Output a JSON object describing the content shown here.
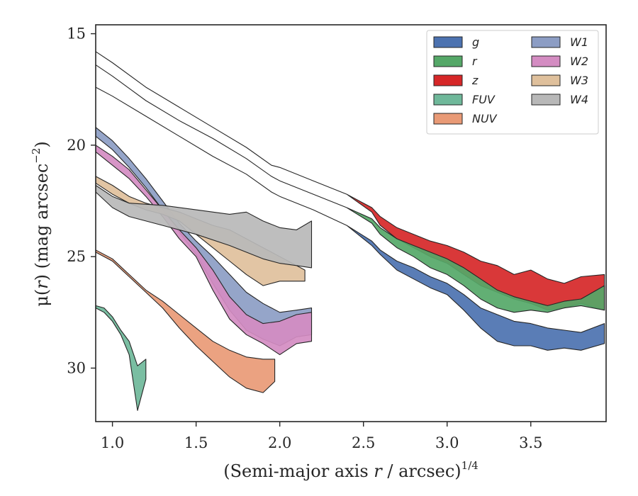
{
  "chart_data": {
    "type": "area",
    "title": "",
    "xlabel_prefix": "(Semi-major axis ",
    "xlabel_var": "r",
    "xlabel_suffix": " / arcsec)",
    "xlabel_sup": "1/4",
    "ylabel_prefix": "μ(",
    "ylabel_var": "r",
    "ylabel_mid": ") (mag arcsec",
    "ylabel_sup": "−2",
    "ylabel_suffix": ")",
    "xlim": [
      0.9,
      3.95
    ],
    "ylim": [
      32.4,
      14.6
    ],
    "y_inverted": true,
    "x_ticks": [
      {
        "v": 1.0,
        "label": "1.0"
      },
      {
        "v": 1.5,
        "label": "1.5"
      },
      {
        "v": 2.0,
        "label": "2.0"
      },
      {
        "v": 2.5,
        "label": "2.5"
      },
      {
        "v": 3.0,
        "label": "3.0"
      },
      {
        "v": 3.5,
        "label": "3.5"
      }
    ],
    "y_ticks": [
      {
        "v": 15,
        "label": "15"
      },
      {
        "v": 20,
        "label": "20"
      },
      {
        "v": 25,
        "label": "25"
      },
      {
        "v": 30,
        "label": "30"
      }
    ],
    "grid": false,
    "legend_position": "top-right",
    "legend_columns": 2,
    "series": [
      {
        "name": "z",
        "color": "#d62728",
        "x": [
          0.9,
          1.0,
          1.2,
          1.4,
          1.6,
          1.8,
          1.95,
          2.0,
          2.2,
          2.4,
          2.55,
          2.6,
          2.7,
          2.8,
          2.9,
          3.0,
          3.1,
          3.2,
          3.3,
          3.4,
          3.5,
          3.6,
          3.7,
          3.8,
          3.94
        ],
        "lo": [
          15.8,
          16.3,
          17.4,
          18.3,
          19.2,
          20.1,
          20.9,
          21.0,
          21.6,
          22.2,
          22.8,
          23.2,
          23.7,
          24.0,
          24.3,
          24.5,
          24.8,
          25.2,
          25.4,
          25.8,
          25.6,
          26.0,
          26.2,
          25.9,
          25.8
        ],
        "hi": [
          15.8,
          16.3,
          17.4,
          18.3,
          19.2,
          20.1,
          20.9,
          21.0,
          21.6,
          22.2,
          23.0,
          23.6,
          24.2,
          24.6,
          25.0,
          25.3,
          25.8,
          26.3,
          26.6,
          26.9,
          27.1,
          27.4,
          27.3,
          27.1,
          27.4
        ]
      },
      {
        "name": "r",
        "color": "#55a868",
        "x": [
          0.9,
          1.0,
          1.2,
          1.4,
          1.6,
          1.8,
          1.95,
          2.0,
          2.2,
          2.4,
          2.55,
          2.6,
          2.7,
          2.8,
          2.9,
          3.0,
          3.1,
          3.2,
          3.3,
          3.4,
          3.5,
          3.6,
          3.7,
          3.8,
          3.94
        ],
        "lo": [
          16.4,
          16.9,
          18.0,
          18.9,
          19.7,
          20.6,
          21.4,
          21.6,
          22.2,
          22.8,
          23.3,
          23.7,
          24.2,
          24.5,
          24.8,
          25.1,
          25.5,
          26.0,
          26.5,
          26.8,
          27.0,
          27.2,
          27.0,
          26.9,
          26.3
        ],
        "hi": [
          16.4,
          16.9,
          18.0,
          18.9,
          19.7,
          20.6,
          21.4,
          21.6,
          22.2,
          22.8,
          23.5,
          24.0,
          24.6,
          25.0,
          25.5,
          25.8,
          26.3,
          26.9,
          27.3,
          27.5,
          27.4,
          27.5,
          27.3,
          27.2,
          27.4
        ]
      },
      {
        "name": "g",
        "color": "#4c72b0",
        "x": [
          0.9,
          1.0,
          1.2,
          1.4,
          1.6,
          1.8,
          1.95,
          2.0,
          2.2,
          2.4,
          2.55,
          2.6,
          2.7,
          2.8,
          2.9,
          3.0,
          3.1,
          3.2,
          3.3,
          3.4,
          3.5,
          3.6,
          3.7,
          3.8,
          3.94
        ],
        "lo": [
          17.4,
          17.8,
          18.7,
          19.6,
          20.5,
          21.3,
          22.1,
          22.3,
          22.9,
          23.6,
          24.3,
          24.7,
          25.2,
          25.5,
          25.9,
          26.2,
          26.7,
          27.3,
          27.6,
          27.9,
          28.0,
          28.2,
          28.3,
          28.4,
          28.0
        ],
        "hi": [
          17.4,
          17.8,
          18.7,
          19.6,
          20.5,
          21.3,
          22.1,
          22.3,
          22.9,
          23.6,
          24.5,
          24.9,
          25.6,
          26.0,
          26.4,
          26.7,
          27.4,
          28.2,
          28.8,
          29.0,
          29.0,
          29.2,
          29.1,
          29.2,
          28.9
        ]
      },
      {
        "name": "W1",
        "color": "#8c9dc4",
        "x": [
          0.9,
          1.0,
          1.1,
          1.2,
          1.3,
          1.4,
          1.5,
          1.6,
          1.7,
          1.8,
          1.9,
          2.0,
          2.1,
          2.19
        ],
        "lo": [
          19.2,
          19.8,
          20.6,
          21.5,
          22.5,
          23.5,
          24.3,
          25.0,
          25.8,
          26.6,
          27.1,
          27.5,
          27.4,
          27.3
        ],
        "hi": [
          19.6,
          20.2,
          21.0,
          21.9,
          22.9,
          23.9,
          24.9,
          26.2,
          27.4,
          28.3,
          28.7,
          29.0,
          28.6,
          28.5
        ]
      },
      {
        "name": "W2",
        "color": "#d48cc2",
        "x": [
          0.9,
          1.0,
          1.1,
          1.2,
          1.3,
          1.4,
          1.5,
          1.6,
          1.7,
          1.8,
          1.9,
          2.0,
          2.1,
          2.19
        ],
        "lo": [
          20.0,
          20.5,
          21.1,
          22.0,
          22.9,
          23.8,
          24.6,
          25.6,
          26.8,
          27.6,
          28.0,
          27.9,
          27.6,
          27.5
        ],
        "hi": [
          20.3,
          20.9,
          21.5,
          22.3,
          23.2,
          24.2,
          25.0,
          26.5,
          27.8,
          28.5,
          28.9,
          29.4,
          28.9,
          28.8
        ]
      },
      {
        "name": "W3",
        "color": "#dfc09c",
        "x": [
          0.9,
          1.0,
          1.1,
          1.2,
          1.3,
          1.4,
          1.5,
          1.6,
          1.7,
          1.8,
          1.9,
          2.0,
          2.1,
          2.15
        ],
        "lo": [
          21.4,
          21.8,
          22.3,
          22.6,
          22.8,
          23.0,
          23.3,
          23.6,
          23.8,
          24.2,
          24.6,
          25.0,
          25.4,
          25.6
        ],
        "hi": [
          21.7,
          22.2,
          22.6,
          22.9,
          23.1,
          23.4,
          24.0,
          24.6,
          25.2,
          25.8,
          26.3,
          26.1,
          26.1,
          26.1
        ]
      },
      {
        "name": "W4",
        "color": "#b8b8b8",
        "x": [
          0.9,
          1.0,
          1.1,
          1.3,
          1.5,
          1.7,
          1.8,
          1.9,
          2.0,
          2.1,
          2.19
        ],
        "lo": [
          21.8,
          22.3,
          22.6,
          22.7,
          22.9,
          23.1,
          23.0,
          23.4,
          23.7,
          23.8,
          23.4
        ],
        "hi": [
          22.1,
          22.8,
          23.2,
          23.6,
          24.0,
          24.5,
          24.8,
          25.1,
          25.3,
          25.4,
          25.5
        ]
      },
      {
        "name": "NUV",
        "color": "#e99a76",
        "x": [
          0.9,
          1.0,
          1.1,
          1.2,
          1.3,
          1.4,
          1.5,
          1.6,
          1.7,
          1.8,
          1.9,
          1.97
        ],
        "lo": [
          24.7,
          25.1,
          25.8,
          26.5,
          27.0,
          27.6,
          28.2,
          28.8,
          29.2,
          29.5,
          29.6,
          29.6
        ],
        "hi": [
          24.8,
          25.2,
          25.9,
          26.6,
          27.3,
          28.2,
          29.0,
          29.7,
          30.4,
          30.9,
          31.1,
          30.6
        ]
      },
      {
        "name": "FUV",
        "color": "#6fb89a",
        "x": [
          0.9,
          0.95,
          1.0,
          1.05,
          1.1,
          1.15,
          1.2
        ],
        "lo": [
          27.2,
          27.3,
          27.7,
          28.3,
          28.8,
          29.9,
          29.6
        ],
        "hi": [
          27.3,
          27.5,
          27.9,
          28.5,
          29.4,
          31.9,
          30.5
        ]
      }
    ],
    "legend_order": [
      "g",
      "r",
      "z",
      "FUV",
      "NUV",
      "W1",
      "W2",
      "W3",
      "W4"
    ]
  }
}
